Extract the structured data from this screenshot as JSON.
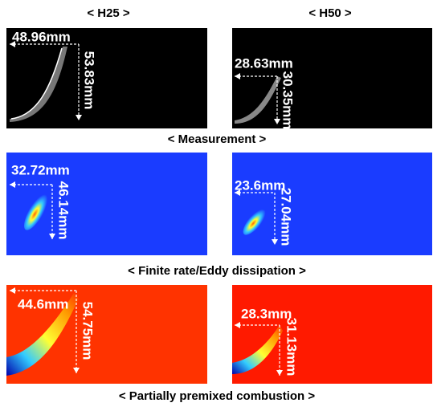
{
  "column_headers": [
    "< H25 >",
    "< H50 >"
  ],
  "rows": [
    {
      "caption": "< Measurement >",
      "panels": [
        {
          "width_label": "48.96mm",
          "height_label": "53.83mm"
        },
        {
          "width_label": "28.63mm",
          "height_label": "30.35mm"
        }
      ]
    },
    {
      "caption": "< Finite rate/Eddy dissipation >",
      "panels": [
        {
          "width_label": "32.72mm",
          "height_label": "46.14mm"
        },
        {
          "width_label": "23.6mm",
          "height_label": "27.04mm"
        }
      ]
    },
    {
      "caption": "< Partially premixed combustion >",
      "panels": [
        {
          "width_label": "44.6mm",
          "height_label": "54.75mm"
        },
        {
          "width_label": "28.3mm",
          "height_label": "31.13mm"
        }
      ]
    }
  ]
}
